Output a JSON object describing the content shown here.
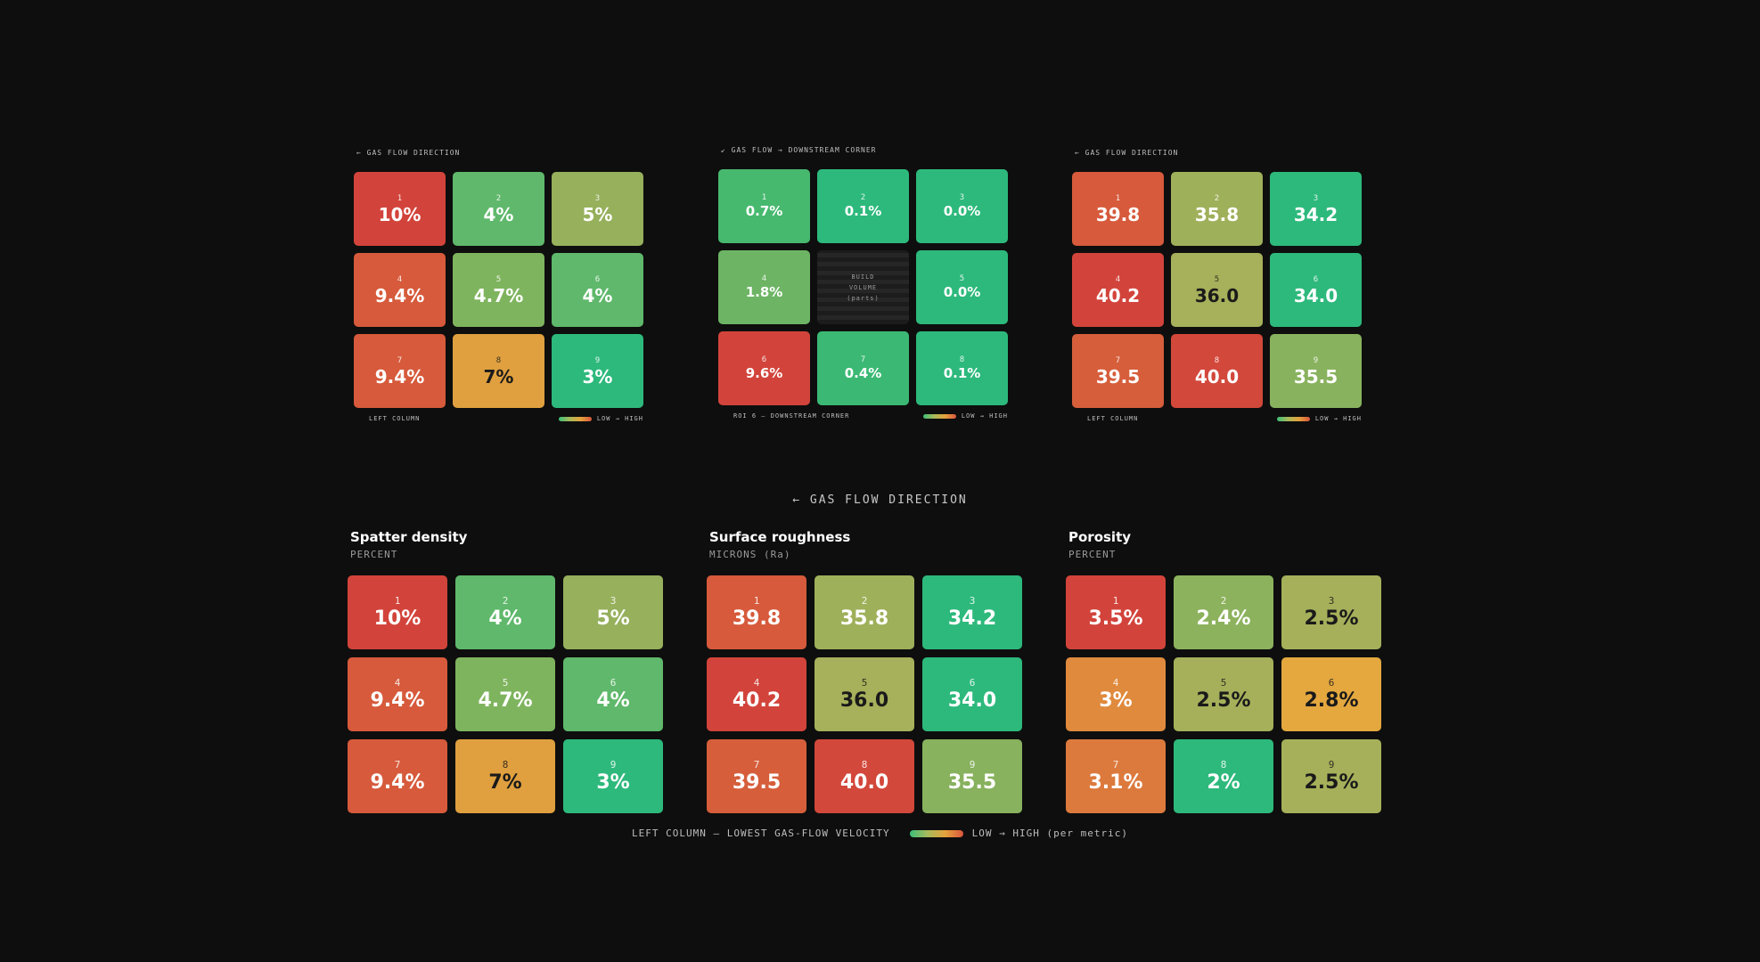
{
  "colors": {
    "background": "#0e0e0e",
    "low": "#3bbf7a",
    "mid": "#a9b95a",
    "high_mid": "#e4a23c",
    "high": "#d9553e"
  },
  "small_panels": [
    {
      "direction": "← GAS FLOW DIRECTION",
      "footer_left": "LEFT COLUMN",
      "legend": "LOW → HIGH",
      "cells": [
        {
          "n": "1",
          "v": "10%",
          "c": "#d2443b",
          "d": false
        },
        {
          "n": "2",
          "v": "4%",
          "c": "#5fb86b",
          "d": false
        },
        {
          "n": "3",
          "v": "5%",
          "c": "#96b05c",
          "d": false
        },
        {
          "n": "4",
          "v": "9.4%",
          "c": "#d65a3b",
          "d": false
        },
        {
          "n": "5",
          "v": "4.7%",
          "c": "#7fb45e",
          "d": false
        },
        {
          "n": "6",
          "v": "4%",
          "c": "#5fb86b",
          "d": false
        },
        {
          "n": "7",
          "v": "9.4%",
          "c": "#d65a3b",
          "d": false
        },
        {
          "n": "8",
          "v": "7%",
          "c": "#e0a03f",
          "d": true
        },
        {
          "n": "9",
          "v": "3%",
          "c": "#2db97c",
          "d": false
        }
      ]
    },
    {
      "direction": "↙ GAS FLOW → DOWNSTREAM CORNER",
      "footer_left": "ROI 6 — DOWNSTREAM CORNER",
      "legend": "LOW → HIGH",
      "build_text": [
        "BUILD",
        "VOLUME",
        "(parts)"
      ],
      "cells": [
        {
          "n": "1",
          "v": "0.7%",
          "c": "#47b96f",
          "d": false
        },
        {
          "n": "2",
          "v": "0.1%",
          "c": "#2db97c",
          "d": false
        },
        {
          "n": "3",
          "v": "0.0%",
          "c": "#2db97c",
          "d": false
        },
        {
          "n": "4",
          "v": "1.8%",
          "c": "#6db564",
          "d": false
        },
        {
          "build": true
        },
        {
          "n": "5",
          "v": "0.0%",
          "c": "#2db97c",
          "d": false
        },
        {
          "n": "6",
          "v": "9.6%",
          "c": "#d2443b",
          "d": false
        },
        {
          "n": "7",
          "v": "0.4%",
          "c": "#3bb974",
          "d": false
        },
        {
          "n": "8",
          "v": "0.1%",
          "c": "#2db97c",
          "d": false
        }
      ]
    },
    {
      "direction": "← GAS FLOW DIRECTION",
      "footer_left": "LEFT COLUMN",
      "legend": "LOW → HIGH",
      "cells": [
        {
          "n": "1",
          "v": "39.8",
          "c": "#d65a3b",
          "d": false
        },
        {
          "n": "2",
          "v": "35.8",
          "c": "#9fb05a",
          "d": false
        },
        {
          "n": "3",
          "v": "34.2",
          "c": "#2db97c",
          "d": false
        },
        {
          "n": "4",
          "v": "40.2",
          "c": "#d2443b",
          "d": false
        },
        {
          "n": "5",
          "v": "36.0",
          "c": "#a7b05a",
          "d": true
        },
        {
          "n": "6",
          "v": "34.0",
          "c": "#2db97c",
          "d": false
        },
        {
          "n": "7",
          "v": "39.5",
          "c": "#d65e3b",
          "d": false
        },
        {
          "n": "8",
          "v": "40.0",
          "c": "#d2483b",
          "d": false
        },
        {
          "n": "9",
          "v": "35.5",
          "c": "#88b25e",
          "d": false
        }
      ]
    }
  ],
  "center_direction": "← GAS FLOW DIRECTION",
  "big_panels": [
    {
      "title": "Spatter density",
      "unit": "PERCENT",
      "cells": [
        {
          "n": "1",
          "v": "10%",
          "c": "#d2443b",
          "d": false
        },
        {
          "n": "2",
          "v": "4%",
          "c": "#5fb86b",
          "d": false
        },
        {
          "n": "3",
          "v": "5%",
          "c": "#96b05c",
          "d": false
        },
        {
          "n": "4",
          "v": "9.4%",
          "c": "#d65a3b",
          "d": false
        },
        {
          "n": "5",
          "v": "4.7%",
          "c": "#7fb45e",
          "d": false
        },
        {
          "n": "6",
          "v": "4%",
          "c": "#5fb86b",
          "d": false
        },
        {
          "n": "7",
          "v": "9.4%",
          "c": "#d65a3b",
          "d": false
        },
        {
          "n": "8",
          "v": "7%",
          "c": "#e0a03f",
          "d": true
        },
        {
          "n": "9",
          "v": "3%",
          "c": "#2db97c",
          "d": false
        }
      ]
    },
    {
      "title": "Surface roughness",
      "unit": "MICRONS (Ra)",
      "cells": [
        {
          "n": "1",
          "v": "39.8",
          "c": "#d65a3b",
          "d": false
        },
        {
          "n": "2",
          "v": "35.8",
          "c": "#9fb05a",
          "d": false
        },
        {
          "n": "3",
          "v": "34.2",
          "c": "#2db97c",
          "d": false
        },
        {
          "n": "4",
          "v": "40.2",
          "c": "#d2443b",
          "d": false
        },
        {
          "n": "5",
          "v": "36.0",
          "c": "#a7b05a",
          "d": true
        },
        {
          "n": "6",
          "v": "34.0",
          "c": "#2db97c",
          "d": false
        },
        {
          "n": "7",
          "v": "39.5",
          "c": "#d65e3b",
          "d": false
        },
        {
          "n": "8",
          "v": "40.0",
          "c": "#d2483b",
          "d": false
        },
        {
          "n": "9",
          "v": "35.5",
          "c": "#88b25e",
          "d": false
        }
      ]
    },
    {
      "title": "Porosity",
      "unit": "PERCENT",
      "cells": [
        {
          "n": "1",
          "v": "3.5%",
          "c": "#d2443b",
          "d": false
        },
        {
          "n": "2",
          "v": "2.4%",
          "c": "#8db25d",
          "d": false
        },
        {
          "n": "3",
          "v": "2.5%",
          "c": "#a6b05a",
          "d": true
        },
        {
          "n": "4",
          "v": "3%",
          "c": "#e08a3d",
          "d": false
        },
        {
          "n": "5",
          "v": "2.5%",
          "c": "#a6b05a",
          "d": true
        },
        {
          "n": "6",
          "v": "2.8%",
          "c": "#e4a83f",
          "d": true
        },
        {
          "n": "7",
          "v": "3.1%",
          "c": "#dc7a3d",
          "d": false
        },
        {
          "n": "8",
          "v": "2%",
          "c": "#2db97c",
          "d": false
        },
        {
          "n": "9",
          "v": "2.5%",
          "c": "#a6b05a",
          "d": true
        }
      ]
    }
  ],
  "footer": {
    "left": "LEFT COLUMN — LOWEST GAS-FLOW VELOCITY",
    "legend": "LOW → HIGH (per metric)"
  },
  "chart_data": [
    {
      "type": "heatmap",
      "categories": [
        "1",
        "2",
        "3",
        "4",
        "5",
        "6",
        "7",
        "8",
        "9"
      ],
      "values": [
        "10%",
        "4%",
        "5%",
        "9.4%",
        "4.7%",
        "4%",
        "9.4%",
        "7%",
        "3%"
      ]
    },
    {
      "type": "heatmap",
      "categories": [
        "1",
        "2",
        "3",
        "4",
        "5",
        "6",
        "7",
        "8"
      ],
      "values": [
        "0.7%",
        "0.1%",
        "0.0%",
        "1.8%",
        "0.0%",
        "9.6%",
        "0.4%",
        "0.1%"
      ]
    },
    {
      "type": "heatmap",
      "categories": [
        "1",
        "2",
        "3",
        "4",
        "5",
        "6",
        "7",
        "8",
        "9"
      ],
      "values": [
        39.8,
        35.8,
        34.2,
        40.2,
        36.0,
        34.0,
        39.5,
        40.0,
        35.5
      ]
    },
    {
      "type": "heatmap",
      "title": "Spatter density",
      "ylabel": "PERCENT",
      "categories": [
        "1",
        "2",
        "3",
        "4",
        "5",
        "6",
        "7",
        "8",
        "9"
      ],
      "values": [
        "10%",
        "4%",
        "5%",
        "9.4%",
        "4.7%",
        "4%",
        "9.4%",
        "7%",
        "3%"
      ]
    },
    {
      "type": "heatmap",
      "title": "Surface roughness",
      "ylabel": "MICRONS (Ra)",
      "categories": [
        "1",
        "2",
        "3",
        "4",
        "5",
        "6",
        "7",
        "8",
        "9"
      ],
      "values": [
        39.8,
        35.8,
        34.2,
        40.2,
        36.0,
        34.0,
        39.5,
        40.0,
        35.5
      ]
    },
    {
      "type": "heatmap",
      "title": "Porosity",
      "ylabel": "PERCENT",
      "categories": [
        "1",
        "2",
        "3",
        "4",
        "5",
        "6",
        "7",
        "8",
        "9"
      ],
      "values": [
        "3.5%",
        "2.4%",
        "2.5%",
        "3%",
        "2.5%",
        "2.8%",
        "3.1%",
        "2%",
        "2.5%"
      ]
    }
  ]
}
